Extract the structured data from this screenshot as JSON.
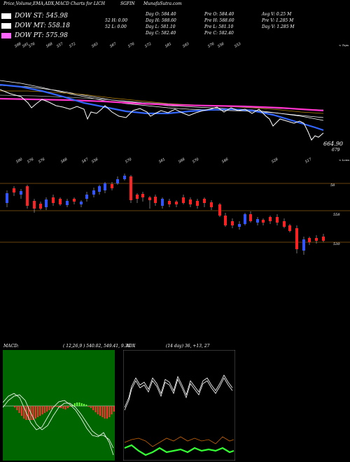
{
  "header": {
    "title": "Price,Volume,EMA,ADX,MACD Charts for LICH",
    "symbol": "SGFIN",
    "site": "MunafaSutra.com"
  },
  "legend": [
    {
      "label": "DOW ST: 545.98",
      "color": "#ffffff"
    },
    {
      "label": "DOW MT: 558.18",
      "color": "#ffffff"
    },
    {
      "label": "DOW PT: 575.98",
      "color": "#ff66ff"
    }
  ],
  "stats": {
    "c1": [
      "Day O: 584.40",
      "Day H: 588.60",
      "Day L: 581.10",
      "Day C: 582.40"
    ],
    "c1b": [
      "52  H: 0.00",
      "52  L: 0.00"
    ],
    "c2": [
      "Pre  O: 584.40",
      "Pre  H: 588.60",
      "Pre  L: 581.10",
      "Pre  C: 582.40"
    ],
    "c3": [
      "Avg V: 0.25 M",
      "Pre  V: 1.285 M",
      "Day V: 1.285 M"
    ]
  },
  "price_chart": {
    "top_tick_labels": [
      "598",
      "591",
      "576",
      "568",
      "557",
      "572",
      "593",
      "567",
      "576",
      "572",
      "581",
      "593",
      "576",
      "556",
      "553"
    ],
    "top_note": "< Tops",
    "bottom_tick_labels": [
      "590",
      "576",
      "576",
      "568",
      "547",
      "556",
      "570",
      "561",
      "568",
      "570",
      "546",
      "528",
      "517"
    ],
    "bottom_note": "< Lows",
    "last_value": "664.90",
    "ref_value": "679",
    "colors": {
      "price": "#ffffff",
      "ema_fast": "#3366ff",
      "ema_mid": "#ffffff",
      "ema_slow": "#ff33cc"
    }
  },
  "candle_chart": {
    "level_labels": [
      "58",
      "558",
      "530"
    ],
    "colors": {
      "up": "#3355ff",
      "down": "#ff2222",
      "level": "#8a5a10"
    }
  },
  "indicators": {
    "macd_label": "MACD:",
    "macd_values": "( 12,26,9 ) 540.02, 549.41, 9.39",
    "adx_label": "ADX",
    "adx_values": "(14  day) 36, +13, 27",
    "colors": {
      "macd_bg": "#006600",
      "hist_neg": "#ff3333",
      "hist_pos": "#66ff33",
      "adx_plus": "#33ff33",
      "adx_minus": "#cc6600"
    }
  },
  "chart_data": {
    "type": "line",
    "series": [
      {
        "name": "DOW ST",
        "values": [
          545.98
        ]
      },
      {
        "name": "DOW MT",
        "values": [
          558.18
        ]
      },
      {
        "name": "DOW PT",
        "values": [
          575.98
        ]
      }
    ]
  }
}
